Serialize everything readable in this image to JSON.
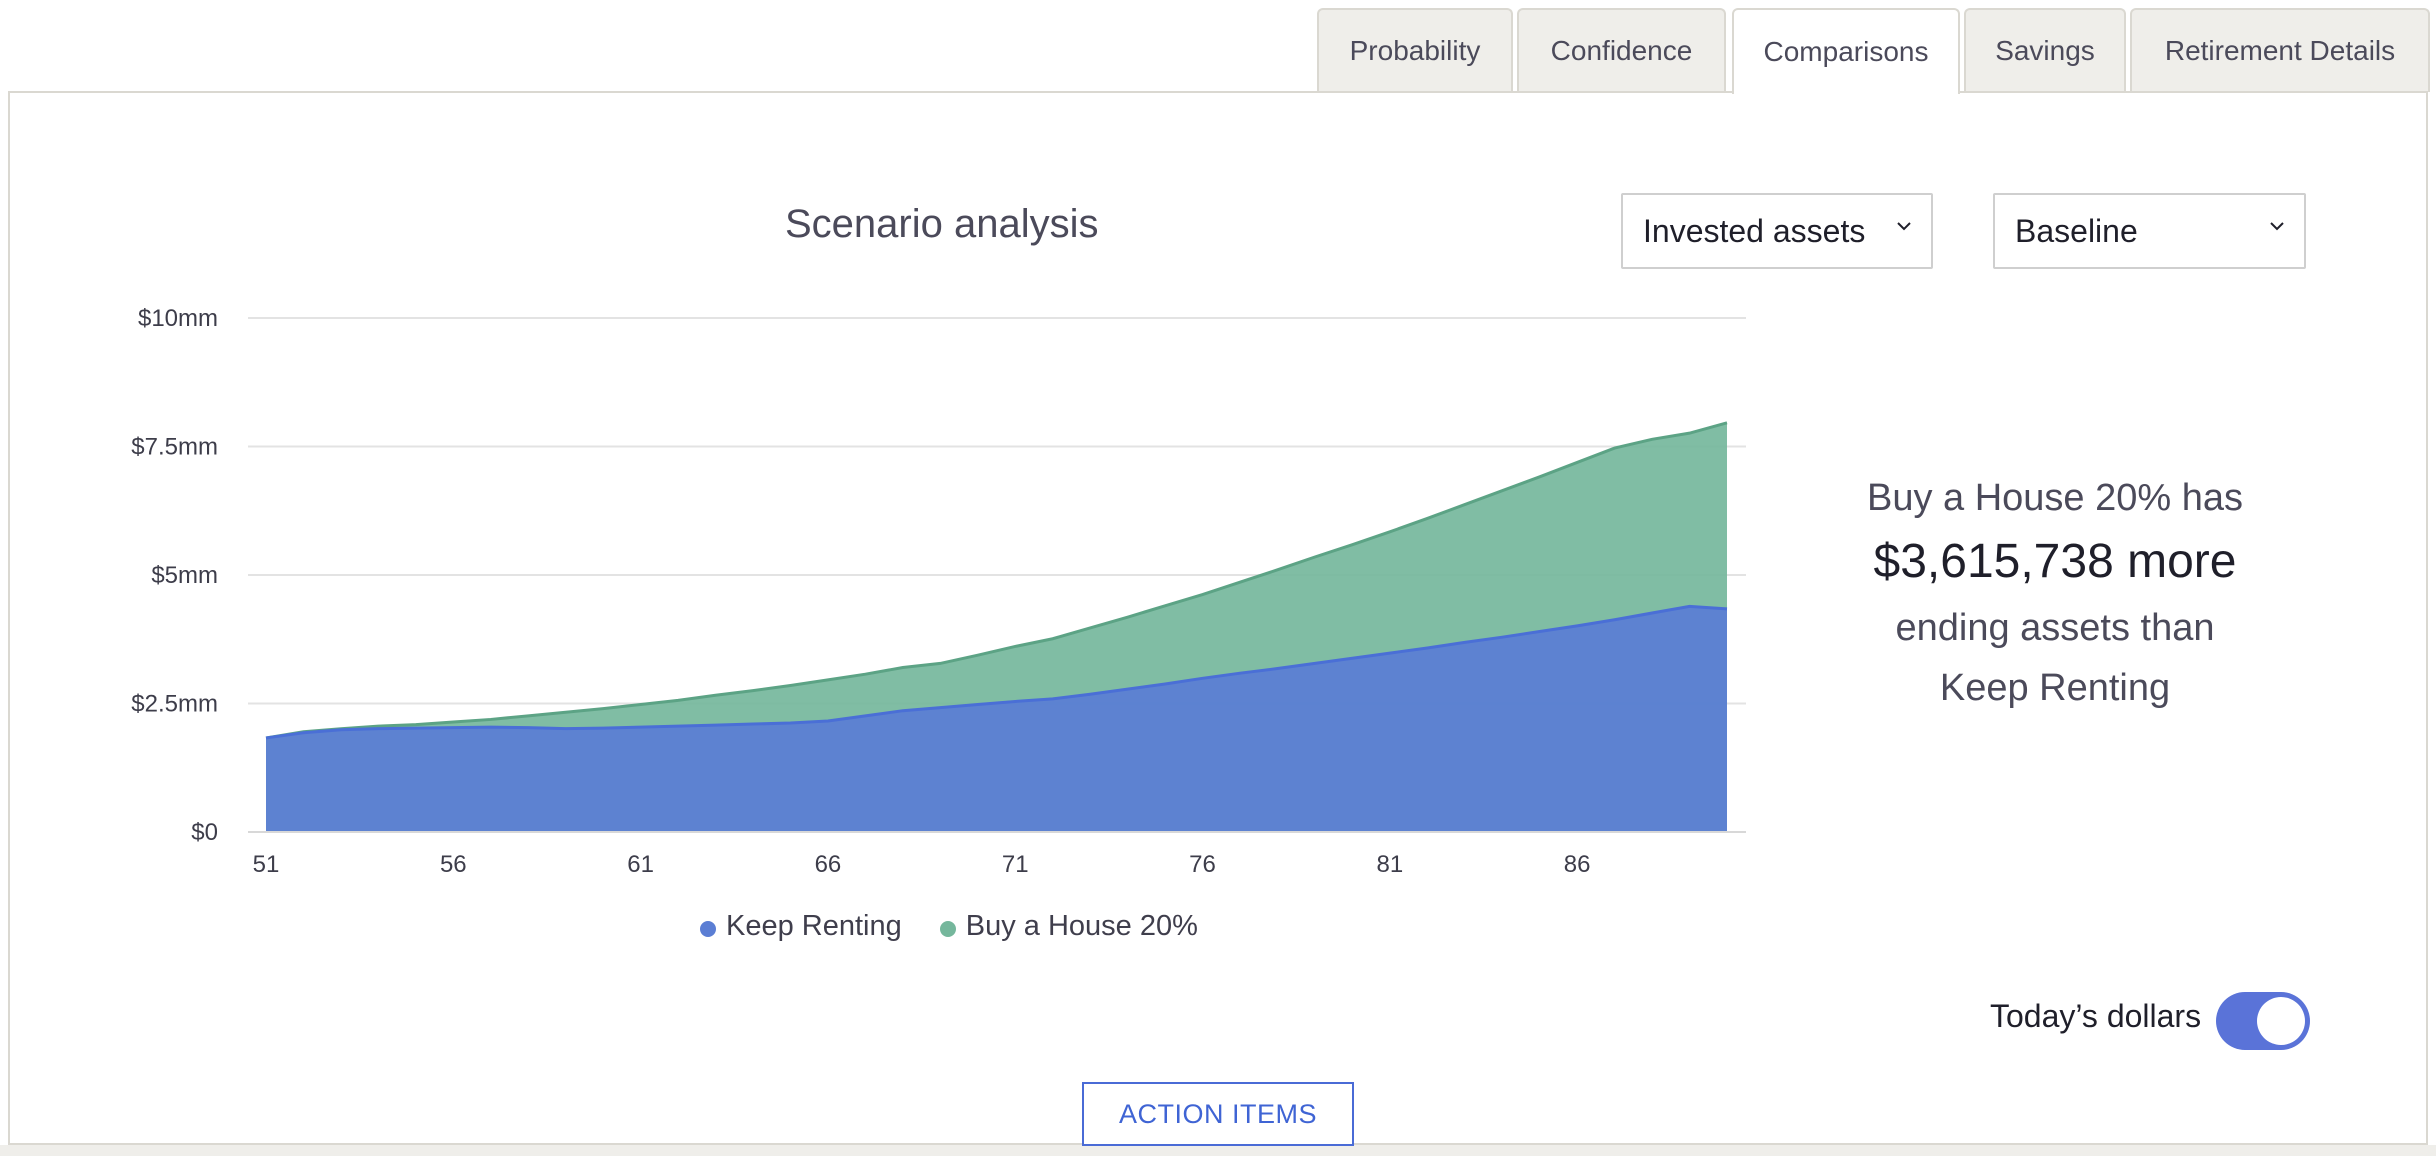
{
  "tabs": [
    {
      "label": "Probability"
    },
    {
      "label": "Confidence"
    },
    {
      "label": "Comparisons",
      "active": true
    },
    {
      "label": "Savings"
    },
    {
      "label": "Retirement Details"
    }
  ],
  "chart_title": "Scenario analysis",
  "selects": {
    "metric": "Invested assets",
    "scenario": "Baseline"
  },
  "summary": {
    "line1": "Buy a House 20% has",
    "amount": "$3,615,738 more",
    "line3": "ending assets than",
    "line4": "Keep Renting"
  },
  "toggle": {
    "label": "Today’s dollars",
    "on": true
  },
  "action_button": "ACTION ITEMS",
  "colors": {
    "keep_renting": "#5b7ed4",
    "buy_house": "#75b79c",
    "toggle": "#5a73d8",
    "accent": "#3f64d4"
  },
  "chart_data": {
    "type": "area",
    "title": "Scenario analysis",
    "x": [
      51,
      52,
      53,
      54,
      55,
      56,
      57,
      58,
      59,
      60,
      61,
      62,
      63,
      64,
      65,
      66,
      67,
      68,
      69,
      70,
      71,
      72,
      73,
      74,
      75,
      76,
      77,
      78,
      79,
      80,
      81,
      82,
      83,
      84,
      85,
      86,
      87,
      88,
      89,
      90
    ],
    "xticks": [
      51,
      56,
      61,
      66,
      71,
      76,
      81,
      86
    ],
    "yticks": [
      "$0",
      "$2.5mm",
      "$5mm",
      "$7.5mm",
      "$10mm"
    ],
    "ylim": [
      0,
      10000000
    ],
    "series": [
      {
        "name": "Keep Renting",
        "values": [
          1830000,
          1930000,
          1990000,
          2010000,
          2020000,
          2030000,
          2040000,
          2030000,
          2010000,
          2020000,
          2040000,
          2060000,
          2080000,
          2100000,
          2120000,
          2160000,
          2260000,
          2360000,
          2420000,
          2480000,
          2540000,
          2590000,
          2680000,
          2780000,
          2880000,
          2990000,
          3090000,
          3180000,
          3280000,
          3380000,
          3480000,
          3580000,
          3690000,
          3790000,
          3900000,
          4010000,
          4130000,
          4260000,
          4390000,
          4340000
        ]
      },
      {
        "name": "Buy a House 20%",
        "values": [
          1830000,
          1950000,
          2010000,
          2060000,
          2090000,
          2140000,
          2190000,
          2260000,
          2330000,
          2400000,
          2480000,
          2560000,
          2660000,
          2750000,
          2850000,
          2960000,
          3070000,
          3200000,
          3280000,
          3440000,
          3610000,
          3760000,
          3970000,
          4180000,
          4400000,
          4620000,
          4860000,
          5100000,
          5350000,
          5590000,
          5840000,
          6100000,
          6370000,
          6640000,
          6910000,
          7190000,
          7470000,
          7640000,
          7760000,
          7960000
        ]
      }
    ],
    "legend": "bottom",
    "grid": true
  }
}
